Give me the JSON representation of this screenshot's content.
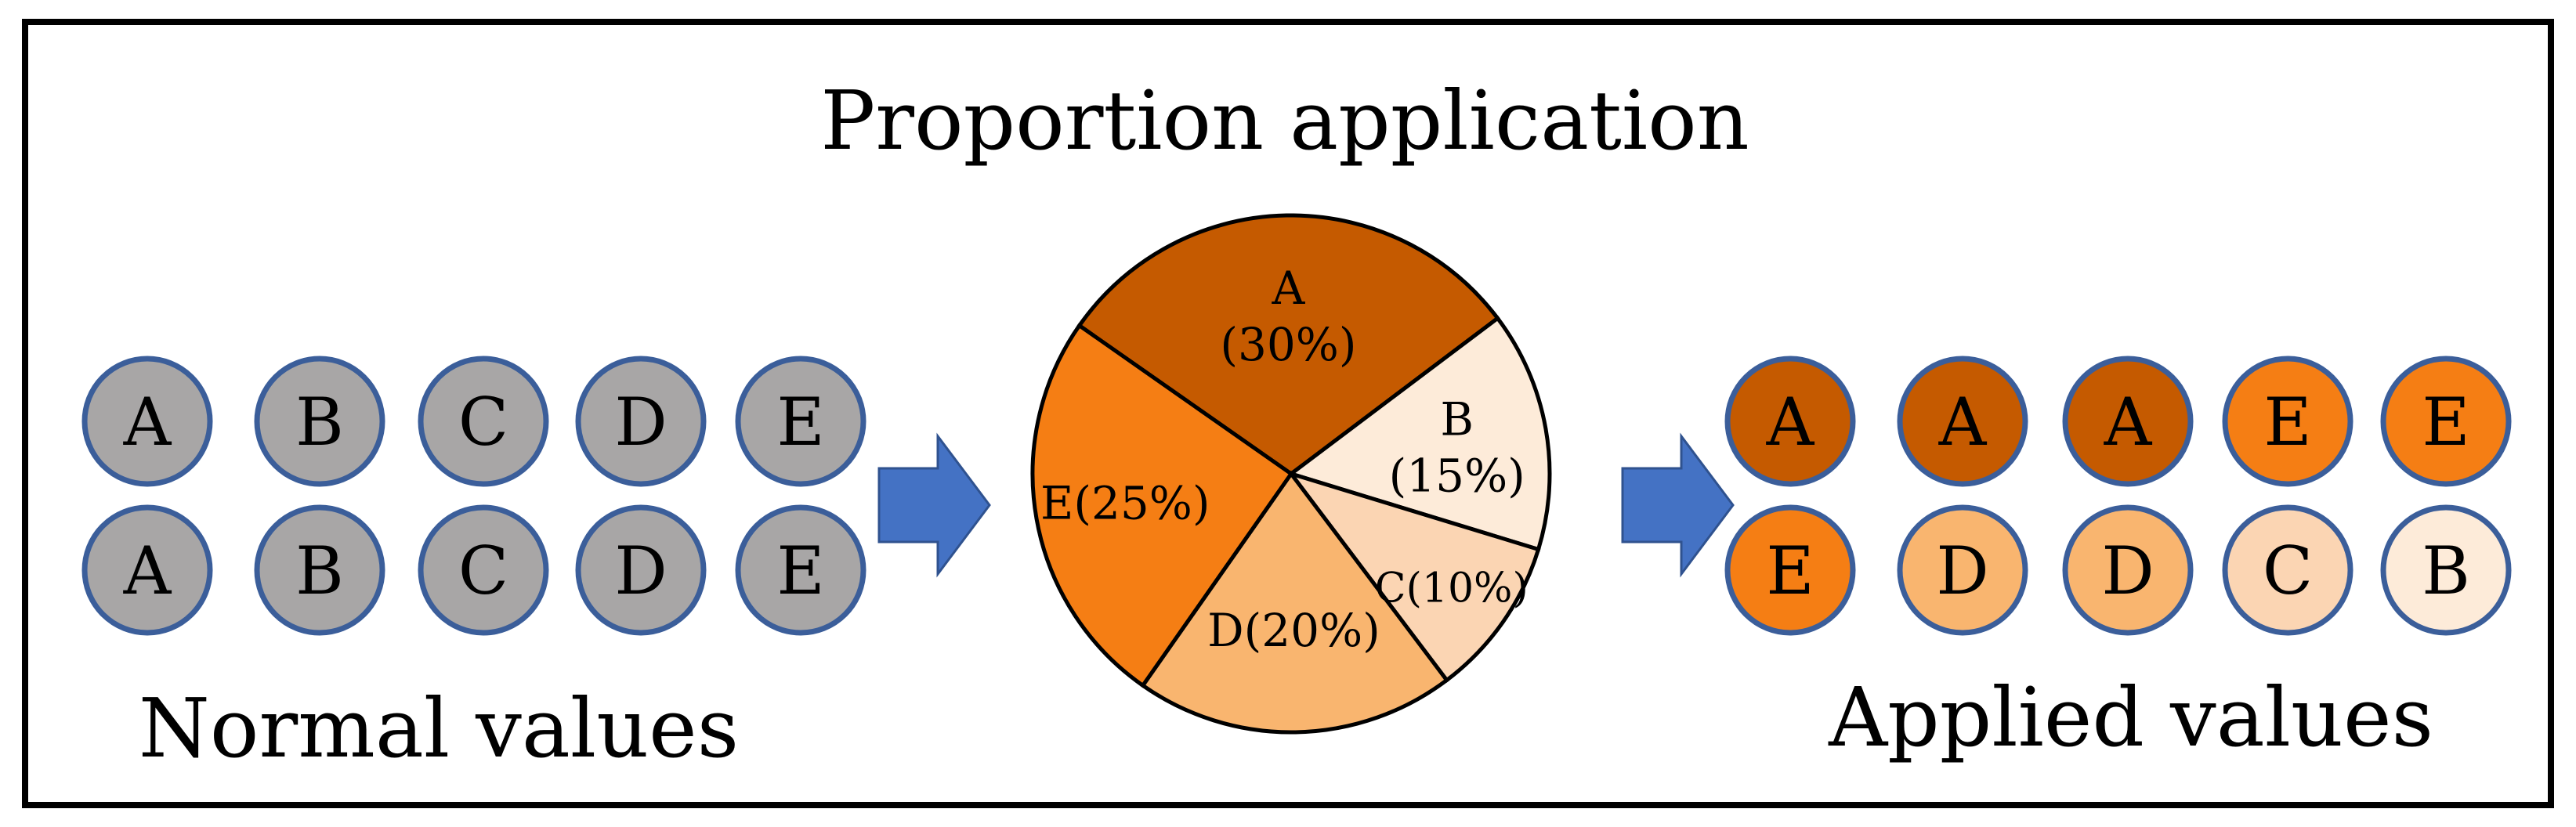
{
  "title": "Proportion application",
  "normal": {
    "label": "Normal values",
    "rows": [
      [
        "A",
        "B",
        "C",
        "D",
        "E"
      ],
      [
        "A",
        "B",
        "C",
        "D",
        "E"
      ]
    ],
    "fill": "#a8a6a6"
  },
  "applied": {
    "label": "Applied values",
    "rows": [
      [
        "A",
        "A",
        "A",
        "E",
        "E"
      ],
      [
        "E",
        "D",
        "D",
        "C",
        "B"
      ]
    ]
  },
  "colors": {
    "A": "#c55a00",
    "B": "#fdebd9",
    "C": "#fbd5b3",
    "D": "#f9b56f",
    "E": "#f57e14",
    "circle_stroke": "#3b5e9a",
    "arrow": "#4472c4",
    "frame": "#000000"
  },
  "pie": {
    "slices": [
      {
        "key": "A",
        "percent": 30,
        "label_line1": "A",
        "label_line2": "(30%)"
      },
      {
        "key": "B",
        "percent": 15,
        "label_line1": "B",
        "label_line2": "(15%)"
      },
      {
        "key": "C",
        "percent": 10,
        "label_line1": "C(10%)",
        "label_line2": ""
      },
      {
        "key": "D",
        "percent": 20,
        "label_line1": "D(20%)",
        "label_line2": ""
      },
      {
        "key": "E",
        "percent": 25,
        "label_line1": "E(25%)",
        "label_line2": ""
      }
    ]
  }
}
